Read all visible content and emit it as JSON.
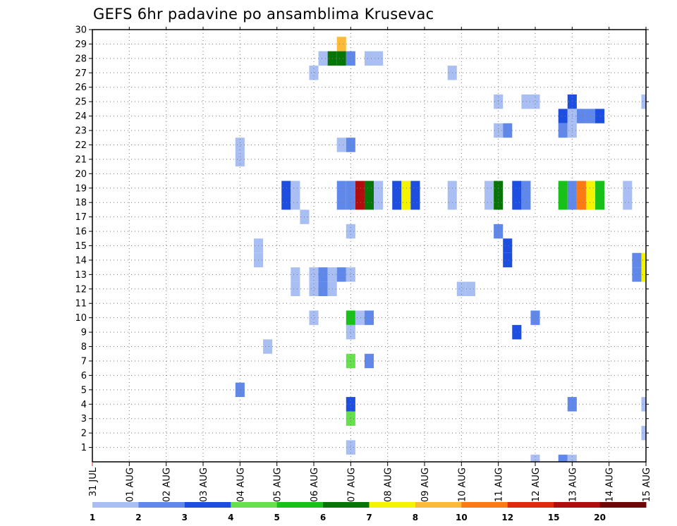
{
  "chart_data": {
    "type": "heatmap",
    "title": "GEFS 6hr padavine po ansamblima Krusevac",
    "xlabel": "",
    "ylabel": "",
    "x_tick_labels": [
      "31 JUL",
      "01 AUG",
      "02 AUG",
      "03 AUG",
      "04 AUG",
      "05 AUG",
      "06 AUG",
      "07 AUG",
      "08 AUG",
      "09 AUG",
      "10 AUG",
      "11 AUG",
      "12 AUG",
      "13 AUG",
      "14 AUG",
      "15 AUG"
    ],
    "y_tick_labels": [
      "1",
      "2",
      "3",
      "4",
      "5",
      "6",
      "7",
      "8",
      "9",
      "10",
      "11",
      "12",
      "13",
      "14",
      "15",
      "16",
      "17",
      "18",
      "19",
      "20",
      "21",
      "22",
      "23",
      "24",
      "25",
      "26",
      "27",
      "28",
      "29",
      "30"
    ],
    "xlim": [
      0,
      60
    ],
    "ylim": [
      0,
      30
    ],
    "x_unit": "6-hour steps from 31 JUL 00Z",
    "grid": true,
    "grid_style": "dotted",
    "colorbar": {
      "position": "bottom",
      "labels": [
        "1",
        "2",
        "3",
        "4",
        "5",
        "6",
        "7",
        "8",
        "10",
        "12",
        "15",
        "20"
      ],
      "colors": [
        "#a9bff4",
        "#5f88ea",
        "#1e4ee0",
        "#66e04c",
        "#17c117",
        "#067406",
        "#f4f400",
        "#fbbb38",
        "#fb7a16",
        "#e02a0e",
        "#b00e0e",
        "#6e0707"
      ]
    },
    "series": [
      {
        "member": 29,
        "cells": [
          [
            27,
            7
          ]
        ]
      },
      {
        "member": 28,
        "cells": [
          [
            25,
            0
          ],
          [
            26,
            5
          ],
          [
            27,
            5
          ],
          [
            28,
            1
          ],
          [
            30,
            0
          ],
          [
            31,
            0
          ]
        ]
      },
      {
        "member": 27,
        "cells": [
          [
            24,
            0
          ],
          [
            39,
            0
          ]
        ]
      },
      {
        "member": 25,
        "cells": [
          [
            44,
            0
          ],
          [
            47,
            0
          ],
          [
            48,
            0
          ],
          [
            52,
            2
          ],
          [
            60,
            0
          ]
        ]
      },
      {
        "member": 24,
        "cells": [
          [
            51,
            2
          ],
          [
            52,
            0
          ],
          [
            53,
            1
          ],
          [
            54,
            1
          ],
          [
            55,
            2
          ]
        ]
      },
      {
        "member": 23,
        "cells": [
          [
            44,
            0
          ],
          [
            45,
            1
          ],
          [
            51,
            1
          ],
          [
            52,
            0
          ]
        ]
      },
      {
        "member": 22,
        "cells": [
          [
            16,
            0
          ],
          [
            27,
            0
          ],
          [
            28,
            1
          ]
        ]
      },
      {
        "member": 21,
        "cells": [
          [
            16,
            0
          ]
        ]
      },
      {
        "member": 19,
        "cells": [
          [
            21,
            2
          ],
          [
            22,
            0
          ],
          [
            27,
            1
          ],
          [
            28,
            1
          ],
          [
            29,
            10
          ],
          [
            30,
            5
          ],
          [
            31,
            0
          ],
          [
            33,
            2
          ],
          [
            34,
            6
          ],
          [
            35,
            2
          ],
          [
            39,
            0
          ],
          [
            43,
            0
          ],
          [
            44,
            5
          ],
          [
            46,
            2
          ],
          [
            47,
            1
          ],
          [
            51,
            4
          ],
          [
            52,
            1
          ],
          [
            53,
            8
          ],
          [
            54,
            6
          ],
          [
            55,
            4
          ],
          [
            58,
            0
          ]
        ]
      },
      {
        "member": 18,
        "cells": [
          [
            21,
            2
          ],
          [
            22,
            0
          ],
          [
            27,
            1
          ],
          [
            28,
            1
          ],
          [
            29,
            10
          ],
          [
            30,
            5
          ],
          [
            31,
            0
          ],
          [
            33,
            2
          ],
          [
            34,
            6
          ],
          [
            35,
            2
          ],
          [
            39,
            0
          ],
          [
            43,
            0
          ],
          [
            44,
            5
          ],
          [
            46,
            2
          ],
          [
            47,
            1
          ],
          [
            51,
            4
          ],
          [
            52,
            1
          ],
          [
            53,
            8
          ],
          [
            54,
            6
          ],
          [
            55,
            4
          ],
          [
            58,
            0
          ]
        ]
      },
      {
        "member": 17,
        "cells": [
          [
            23,
            0
          ]
        ]
      },
      {
        "member": 16,
        "cells": [
          [
            28,
            0
          ],
          [
            44,
            1
          ]
        ]
      },
      {
        "member": 15,
        "cells": [
          [
            18,
            0
          ],
          [
            45,
            2
          ]
        ]
      },
      {
        "member": 14,
        "cells": [
          [
            18,
            0
          ],
          [
            45,
            2
          ],
          [
            59,
            1
          ],
          [
            60,
            6
          ]
        ]
      },
      {
        "member": 13,
        "cells": [
          [
            22,
            0
          ],
          [
            24,
            0
          ],
          [
            25,
            1
          ],
          [
            26,
            0
          ],
          [
            27,
            1
          ],
          [
            28,
            0
          ],
          [
            59,
            1
          ],
          [
            60,
            6
          ]
        ]
      },
      {
        "member": 12,
        "cells": [
          [
            22,
            0
          ],
          [
            24,
            0
          ],
          [
            25,
            1
          ],
          [
            26,
            0
          ],
          [
            40,
            0
          ],
          [
            41,
            0
          ]
        ]
      },
      {
        "member": 10,
        "cells": [
          [
            24,
            0
          ],
          [
            28,
            4
          ],
          [
            29,
            0
          ],
          [
            30,
            1
          ],
          [
            48,
            1
          ]
        ]
      },
      {
        "member": 9,
        "cells": [
          [
            28,
            0
          ],
          [
            46,
            2
          ]
        ]
      },
      {
        "member": 8,
        "cells": [
          [
            19,
            0
          ]
        ]
      },
      {
        "member": 7,
        "cells": [
          [
            28,
            3
          ],
          [
            30,
            1
          ]
        ]
      },
      {
        "member": 5,
        "cells": [
          [
            16,
            1
          ]
        ]
      },
      {
        "member": 4,
        "cells": [
          [
            28,
            2
          ],
          [
            52,
            1
          ],
          [
            60,
            0
          ]
        ]
      },
      {
        "member": 3,
        "cells": [
          [
            28,
            3
          ]
        ]
      },
      {
        "member": 2,
        "cells": [
          [
            60,
            0
          ]
        ]
      },
      {
        "member": 1,
        "cells": [
          [
            28,
            0
          ]
        ]
      },
      {
        "member": 0,
        "cells": [
          [
            48,
            0
          ],
          [
            51,
            1
          ],
          [
            52,
            0
          ]
        ]
      }
    ]
  }
}
